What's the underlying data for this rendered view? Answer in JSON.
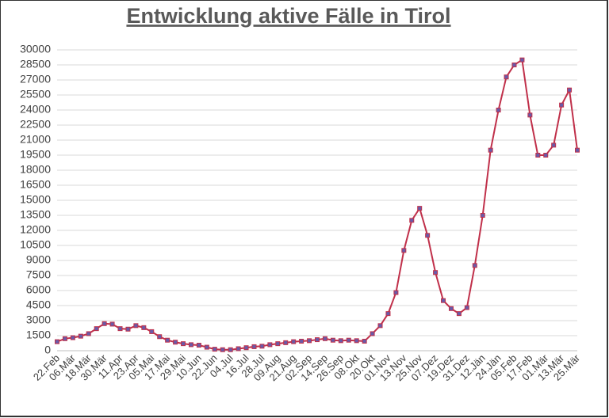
{
  "chart_data": {
    "type": "line",
    "title": "Entwicklung aktive Fälle in Tirol",
    "categories": [
      "22.Feb",
      null,
      "06.Mär",
      null,
      "18.Mär",
      null,
      "30.Mär",
      null,
      "11.Apr",
      null,
      "23.Apr",
      null,
      "05.Mai",
      null,
      "17.Mai",
      null,
      "29.Mai",
      null,
      "10.Jun",
      null,
      "22.Jun",
      null,
      "04.Jul",
      null,
      "16.Jul",
      null,
      "28.Jul",
      null,
      "09.Aug",
      null,
      "21.Aug",
      null,
      "02.Sep",
      null,
      "14.Sep",
      null,
      "26.Sep",
      null,
      "08.Okt",
      null,
      "20.Okt",
      null,
      "01.Nov",
      null,
      "13.Nov",
      null,
      "25.Nov",
      null,
      "07.Dez",
      null,
      "19.Dez",
      null,
      "31.Dez",
      null,
      "12.Jän",
      null,
      "24.Jän",
      null,
      "05.Feb",
      null,
      "17.Feb",
      null,
      "01.Mär",
      null,
      "13.Mär",
      null,
      "25.Mär"
    ],
    "values": [
      900,
      1200,
      1300,
      1450,
      1700,
      2200,
      2700,
      2650,
      2200,
      2150,
      2500,
      2300,
      1900,
      1400,
      1050,
      850,
      700,
      600,
      550,
      350,
      150,
      100,
      100,
      200,
      300,
      400,
      450,
      600,
      700,
      800,
      900,
      950,
      1000,
      1100,
      1200,
      1050,
      1000,
      1050,
      1000,
      950,
      1700,
      2500,
      3700,
      5800,
      10000,
      13000,
      14200,
      11500,
      7800,
      5000,
      4200,
      3700,
      4300,
      8500,
      13500,
      20000,
      24000,
      27300,
      28500,
      29000,
      23500,
      19500,
      19500,
      20500,
      24500,
      26000,
      20000
    ],
    "color": "#c0304a",
    "marker_color": "#6a5aa8",
    "ylim": [
      0,
      30000
    ],
    "yticks": [
      0,
      1500,
      3000,
      4500,
      6000,
      7500,
      9000,
      10500,
      12000,
      13500,
      15000,
      16500,
      18000,
      19500,
      21000,
      22500,
      24000,
      25500,
      27000,
      28500,
      30000
    ],
    "grid": true
  }
}
